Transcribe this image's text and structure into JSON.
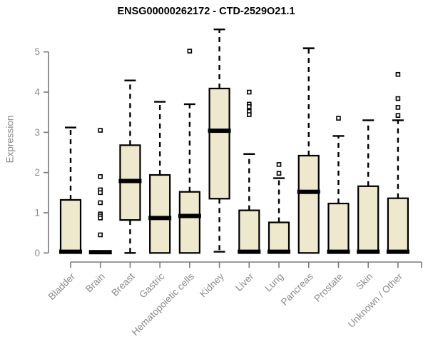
{
  "chart_data": {
    "type": "boxplot",
    "title": "ENSG00000262172 - CTD-2529O21.1",
    "ylabel": "Expression",
    "xlabel": "",
    "ylim": [
      0,
      5
    ],
    "yticks": [
      "0",
      "1",
      "2",
      "3",
      "4",
      "5"
    ],
    "grid": false,
    "legend": null,
    "colors": {
      "box_fill": "#EEE8CD",
      "box_stroke": "#000000",
      "axis": "#7a7a7a",
      "tick_label": "#8a8a8a",
      "title": "#000000"
    },
    "categories": [
      "Bladder",
      "Brain",
      "Breast",
      "Gastric",
      "Hematopoietic cells",
      "Kidney",
      "Liver",
      "Lung",
      "Pancreas",
      "Prostate",
      "Skin",
      "Unknown / Other"
    ],
    "series": [
      {
        "label": "Bladder",
        "whisker_low": 0,
        "q1": 0,
        "median": 0.03,
        "q3": 1.32,
        "whisker_high": 3.12,
        "outliers": []
      },
      {
        "label": "Brain",
        "whisker_low": 0,
        "q1": 0,
        "median": 0.02,
        "q3": 0.03,
        "whisker_high": 0.03,
        "outliers": [
          3.05,
          1.9,
          1.57,
          1.5,
          1.25,
          0.97,
          0.92,
          0.87,
          0.45
        ]
      },
      {
        "label": "Breast",
        "whisker_low": 0,
        "q1": 0.82,
        "median": 1.79,
        "q3": 2.68,
        "whisker_high": 4.29,
        "outliers": []
      },
      {
        "label": "Gastric",
        "whisker_low": 0,
        "q1": 0,
        "median": 0.87,
        "q3": 1.94,
        "whisker_high": 3.76,
        "outliers": []
      },
      {
        "label": "Hematopoietic cells",
        "whisker_low": 0,
        "q1": 0,
        "median": 0.92,
        "q3": 1.52,
        "whisker_high": 3.7,
        "outliers": [
          5.02
        ]
      },
      {
        "label": "Kidney",
        "whisker_low": 0.03,
        "q1": 1.35,
        "median": 3.04,
        "q3": 4.09,
        "whisker_high": 5.56,
        "outliers": []
      },
      {
        "label": "Liver",
        "whisker_low": 0,
        "q1": 0,
        "median": 0.03,
        "q3": 1.06,
        "whisker_high": 2.46,
        "outliers": [
          4.0,
          3.7,
          3.64,
          3.52,
          3.44
        ]
      },
      {
        "label": "Lung",
        "whisker_low": 0,
        "q1": 0,
        "median": 0.03,
        "q3": 0.76,
        "whisker_high": 1.86,
        "outliers": [
          2.2,
          1.98
        ]
      },
      {
        "label": "Pancreas",
        "whisker_low": 0,
        "q1": 0,
        "median": 1.52,
        "q3": 2.42,
        "whisker_high": 5.09,
        "outliers": []
      },
      {
        "label": "Prostate",
        "whisker_low": 0,
        "q1": 0,
        "median": 0.03,
        "q3": 1.23,
        "whisker_high": 2.91,
        "outliers": [
          3.35
        ]
      },
      {
        "label": "Skin",
        "whisker_low": 0,
        "q1": 0,
        "median": 0.03,
        "q3": 1.66,
        "whisker_high": 3.3,
        "outliers": []
      },
      {
        "label": "Unknown / Other",
        "whisker_low": 0,
        "q1": 0,
        "median": 0.03,
        "q3": 1.36,
        "whisker_high": 3.3,
        "outliers": [
          4.44,
          3.84,
          3.62,
          3.42
        ]
      }
    ]
  }
}
